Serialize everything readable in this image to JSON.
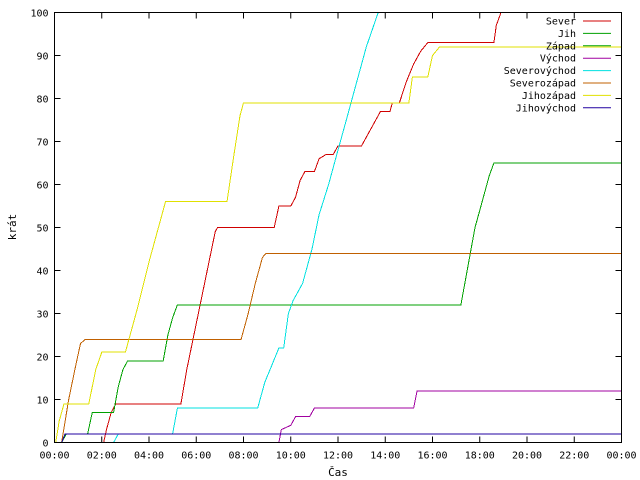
{
  "chart_data": {
    "type": "line",
    "xlabel": "Čas",
    "ylabel": "krát",
    "xlim": [
      0,
      24
    ],
    "ylim": [
      0,
      100
    ],
    "x_ticks": [
      {
        "value": 0,
        "label": "00:00"
      },
      {
        "value": 2,
        "label": "02:00"
      },
      {
        "value": 4,
        "label": "04:00"
      },
      {
        "value": 6,
        "label": "06:00"
      },
      {
        "value": 8,
        "label": "08:00"
      },
      {
        "value": 10,
        "label": "10:00"
      },
      {
        "value": 12,
        "label": "12:00"
      },
      {
        "value": 14,
        "label": "14:00"
      },
      {
        "value": 16,
        "label": "16:00"
      },
      {
        "value": 18,
        "label": "18:00"
      },
      {
        "value": 20,
        "label": "20:00"
      },
      {
        "value": 22,
        "label": "22:00"
      },
      {
        "value": 24,
        "label": "00:00"
      }
    ],
    "y_ticks": [
      0,
      10,
      20,
      30,
      40,
      50,
      60,
      70,
      80,
      90,
      100
    ],
    "grid": false,
    "legend_position": "top-right",
    "series": [
      {
        "name": "Sever",
        "color": "#d00000",
        "points": [
          [
            2.08,
            0
          ],
          [
            2.2,
            3
          ],
          [
            2.4,
            7
          ],
          [
            2.6,
            9
          ],
          [
            5.35,
            9
          ],
          [
            5.6,
            17
          ],
          [
            5.9,
            25
          ],
          [
            6.2,
            33
          ],
          [
            6.5,
            41
          ],
          [
            6.8,
            49
          ],
          [
            6.9,
            50
          ],
          [
            9.3,
            50
          ],
          [
            9.5,
            55
          ],
          [
            10.0,
            55
          ],
          [
            10.2,
            57
          ],
          [
            10.4,
            61
          ],
          [
            10.6,
            63
          ],
          [
            11.0,
            63
          ],
          [
            11.2,
            66
          ],
          [
            11.5,
            67
          ],
          [
            11.8,
            67
          ],
          [
            12.0,
            69
          ],
          [
            13.0,
            69
          ],
          [
            13.2,
            71
          ],
          [
            13.5,
            74
          ],
          [
            13.8,
            77
          ],
          [
            14.2,
            77
          ],
          [
            14.3,
            79
          ],
          [
            14.6,
            79
          ],
          [
            14.9,
            84
          ],
          [
            15.2,
            88
          ],
          [
            15.5,
            91
          ],
          [
            15.8,
            93
          ],
          [
            18.6,
            93
          ],
          [
            18.7,
            97
          ],
          [
            18.9,
            100
          ]
        ]
      },
      {
        "name": "Jih",
        "color": "#00a000",
        "points": [
          [
            0.3,
            0
          ],
          [
            0.5,
            2
          ],
          [
            1.4,
            2
          ],
          [
            1.6,
            7
          ],
          [
            2.5,
            7
          ],
          [
            2.7,
            13
          ],
          [
            2.9,
            17
          ],
          [
            3.1,
            19
          ],
          [
            4.6,
            19
          ],
          [
            4.8,
            25
          ],
          [
            5.0,
            29
          ],
          [
            5.2,
            32
          ],
          [
            17.2,
            32
          ],
          [
            17.4,
            38
          ],
          [
            17.6,
            44
          ],
          [
            17.8,
            50
          ],
          [
            18.0,
            54
          ],
          [
            18.2,
            58
          ],
          [
            18.4,
            62
          ],
          [
            18.6,
            65
          ],
          [
            24,
            65
          ]
        ]
      },
      {
        "name": "Západ",
        "color": "#00a000",
        "points": []
      },
      {
        "name": "Východ",
        "color": "#a000a0",
        "points": [
          [
            9.5,
            0
          ],
          [
            9.6,
            3
          ],
          [
            10.0,
            4
          ],
          [
            10.2,
            6
          ],
          [
            10.8,
            6
          ],
          [
            11.0,
            8
          ],
          [
            15.2,
            8
          ],
          [
            15.35,
            12
          ],
          [
            24,
            12
          ]
        ]
      },
      {
        "name": "Severovýchod",
        "color": "#00e0e0",
        "points": [
          [
            2.5,
            0
          ],
          [
            2.7,
            2
          ],
          [
            5.0,
            2
          ],
          [
            5.2,
            8
          ],
          [
            8.6,
            8
          ],
          [
            8.9,
            14
          ],
          [
            9.2,
            18
          ],
          [
            9.5,
            22
          ],
          [
            9.7,
            22
          ],
          [
            9.9,
            30
          ],
          [
            10.1,
            33
          ],
          [
            10.5,
            37
          ],
          [
            10.9,
            45
          ],
          [
            11.2,
            53
          ],
          [
            11.6,
            60
          ],
          [
            12.0,
            68
          ],
          [
            12.4,
            76
          ],
          [
            12.8,
            84
          ],
          [
            13.2,
            92
          ],
          [
            13.7,
            100
          ]
        ]
      },
      {
        "name": "Severozápad",
        "color": "#c06000",
        "points": [
          [
            0.3,
            0
          ],
          [
            0.6,
            10
          ],
          [
            0.9,
            18
          ],
          [
            1.1,
            23
          ],
          [
            1.3,
            24
          ],
          [
            7.9,
            24
          ],
          [
            8.2,
            30
          ],
          [
            8.5,
            37
          ],
          [
            8.8,
            43
          ],
          [
            8.95,
            44
          ],
          [
            24,
            44
          ]
        ]
      },
      {
        "name": "Jihozápad",
        "color": "#e0e000",
        "points": [
          [
            0.05,
            0
          ],
          [
            0.2,
            5
          ],
          [
            0.4,
            9
          ],
          [
            1.45,
            9
          ],
          [
            1.75,
            17
          ],
          [
            2.0,
            21
          ],
          [
            3.0,
            21
          ],
          [
            3.5,
            31
          ],
          [
            4.0,
            42
          ],
          [
            4.5,
            52
          ],
          [
            4.7,
            56
          ],
          [
            7.3,
            56
          ],
          [
            7.6,
            67
          ],
          [
            7.85,
            76
          ],
          [
            8.0,
            79
          ],
          [
            15.0,
            79
          ],
          [
            15.15,
            85
          ],
          [
            15.8,
            85
          ],
          [
            16.0,
            90
          ],
          [
            16.3,
            92
          ],
          [
            24,
            92
          ]
        ]
      },
      {
        "name": "Jihovýchod",
        "color": "#2000a0",
        "points": [
          [
            0.3,
            0
          ],
          [
            0.45,
            2
          ],
          [
            24,
            2
          ]
        ]
      }
    ]
  }
}
